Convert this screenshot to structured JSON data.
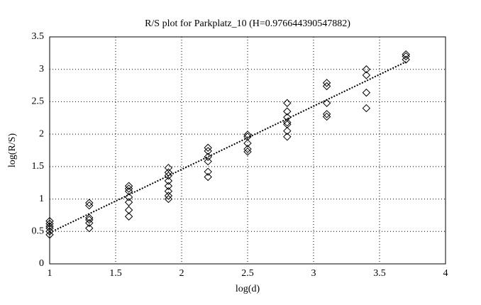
{
  "chart_data": {
    "type": "scatter",
    "title": "R/S plot for Parkplatz_10 (H=0.976644390547882)",
    "xlabel": "log(d)",
    "ylabel": "log(R/S)",
    "x": [
      1,
      1,
      1,
      1,
      1,
      1,
      1.3,
      1.3,
      1.3,
      1.3,
      1.3,
      1.3,
      1.6,
      1.6,
      1.6,
      1.6,
      1.6,
      1.6,
      1.6,
      1.9,
      1.9,
      1.9,
      1.9,
      1.9,
      1.9,
      1.9,
      1.9,
      2.2,
      2.2,
      2.2,
      2.2,
      2.2,
      2.2,
      2.5,
      2.5,
      2.5,
      2.5,
      2.5,
      2.8,
      2.8,
      2.8,
      2.8,
      2.8,
      2.8,
      2.8,
      3.1,
      3.1,
      3.1,
      3.1,
      3.1,
      3.4,
      3.4,
      3.4,
      3.4,
      3.7,
      3.7,
      3.7
    ],
    "y": [
      0.66,
      0.62,
      0.58,
      0.55,
      0.5,
      0.45,
      0.94,
      0.9,
      0.71,
      0.68,
      0.63,
      0.55,
      1.2,
      1.16,
      1.12,
      1.03,
      0.95,
      0.83,
      0.73,
      1.48,
      1.41,
      1.36,
      1.28,
      1.2,
      1.12,
      1.05,
      1.0,
      1.79,
      1.74,
      1.65,
      1.58,
      1.42,
      1.34,
      1.99,
      1.96,
      1.86,
      1.77,
      1.73,
      2.48,
      2.35,
      2.26,
      2.18,
      2.15,
      2.05,
      1.96,
      2.79,
      2.74,
      2.48,
      2.31,
      2.27,
      3.0,
      2.91,
      2.64,
      2.4,
      3.23,
      3.2,
      3.15
    ],
    "fit": {
      "x": [
        1,
        3.7
      ],
      "y": [
        0.48,
        3.115
      ]
    },
    "color": "#000000",
    "xlim": [
      1,
      4
    ],
    "xticks": [
      1,
      1.5,
      2,
      2.5,
      3,
      3.5,
      4
    ],
    "ylim": [
      0,
      3.5
    ],
    "yticks": [
      0,
      0.5,
      1,
      1.5,
      2,
      2.5,
      3,
      3.5
    ],
    "grid": true
  }
}
